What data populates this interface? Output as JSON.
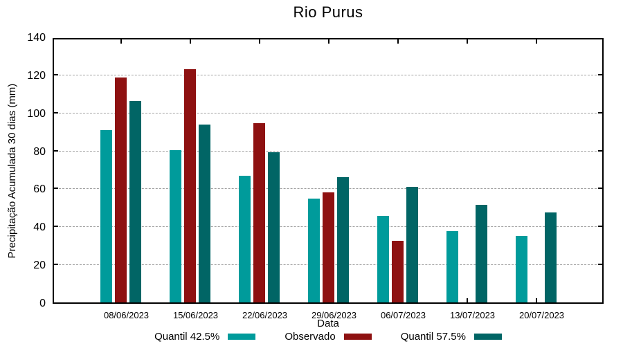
{
  "chart_data": {
    "type": "bar",
    "title": "Rio Purus",
    "xlabel": "Data",
    "ylabel": "Precipitação Acumulada 30 dias (mm)",
    "categories": [
      "08/06/2023",
      "15/06/2023",
      "22/06/2023",
      "29/06/2023",
      "06/07/2023",
      "13/07/2023",
      "20/07/2023"
    ],
    "series": [
      {
        "name": "Quantil 42.5%",
        "color": "#009B9B",
        "values": [
          90.9,
          80.2,
          66.6,
          54.6,
          45.7,
          37.6,
          34.9
        ]
      },
      {
        "name": "Observado",
        "color": "#8E1111",
        "values": [
          118.5,
          122.7,
          94.6,
          57.9,
          32.6,
          null,
          null
        ]
      },
      {
        "name": "Quantil 57.5%",
        "color": "#016565",
        "values": [
          106.1,
          93.6,
          79.3,
          66.0,
          60.8,
          51.4,
          47.4
        ]
      }
    ],
    "ylim": [
      0,
      140
    ],
    "yticks": [
      0,
      20,
      40,
      60,
      80,
      100,
      120,
      140
    ],
    "grid": "horizontal-dashed",
    "legend_position": "bottom"
  },
  "colors": {
    "background": "#FFFFFF",
    "axis": "#000000",
    "grid": "#A0A0A0",
    "text": "#000000"
  }
}
